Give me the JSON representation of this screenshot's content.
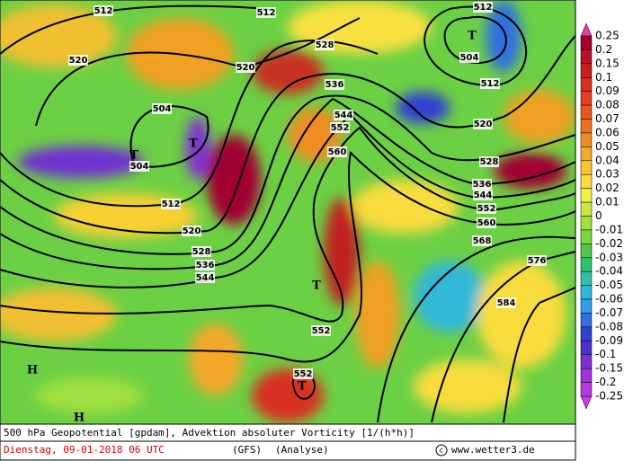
{
  "map": {
    "contour_labels": [
      512,
      512,
      512,
      520,
      520,
      528,
      504,
      504,
      504,
      512,
      512,
      520,
      520,
      528,
      528,
      536,
      536,
      536,
      544,
      544,
      544,
      552,
      552,
      552,
      552,
      560,
      560,
      568,
      576,
      584
    ],
    "low_markers": [
      "T",
      "T",
      "T",
      "T",
      "T"
    ],
    "high_markers": [
      "H",
      "H"
    ]
  },
  "legend": {
    "labels": [
      0.25,
      0.2,
      0.15,
      0.1,
      0.09,
      0.08,
      0.07,
      0.06,
      0.05,
      0.04,
      0.03,
      0.02,
      0.01,
      0,
      -0.01,
      -0.02,
      -0.03,
      -0.04,
      -0.05,
      -0.06,
      -0.07,
      -0.08,
      -0.09,
      -0.1,
      -0.15,
      -0.2,
      -0.25
    ],
    "colors": [
      "#a00030",
      "#b81028",
      "#c82020",
      "#d83020",
      "#e04020",
      "#e85820",
      "#ec7020",
      "#f08c24",
      "#f4a82c",
      "#f8c430",
      "#f8dc3c",
      "#f0f040",
      "#c8e840",
      "#a0e040",
      "#78d840",
      "#50c848",
      "#30c070",
      "#30c0a8",
      "#30b8d8",
      "#30a0e8",
      "#3070e0",
      "#3040d0",
      "#5030c8",
      "#8030d0",
      "#a030d8",
      "#b838dc"
    ]
  },
  "footer": {
    "title": "500 hPa Geopotential [gpdam], Advektion absoluter Vorticity [1/(h*h)]",
    "date": "Dienstag, 09-01-2018  06 UTC",
    "model": "(GFS)",
    "run": "(Analyse)",
    "credit": "www.wetter3.de"
  }
}
